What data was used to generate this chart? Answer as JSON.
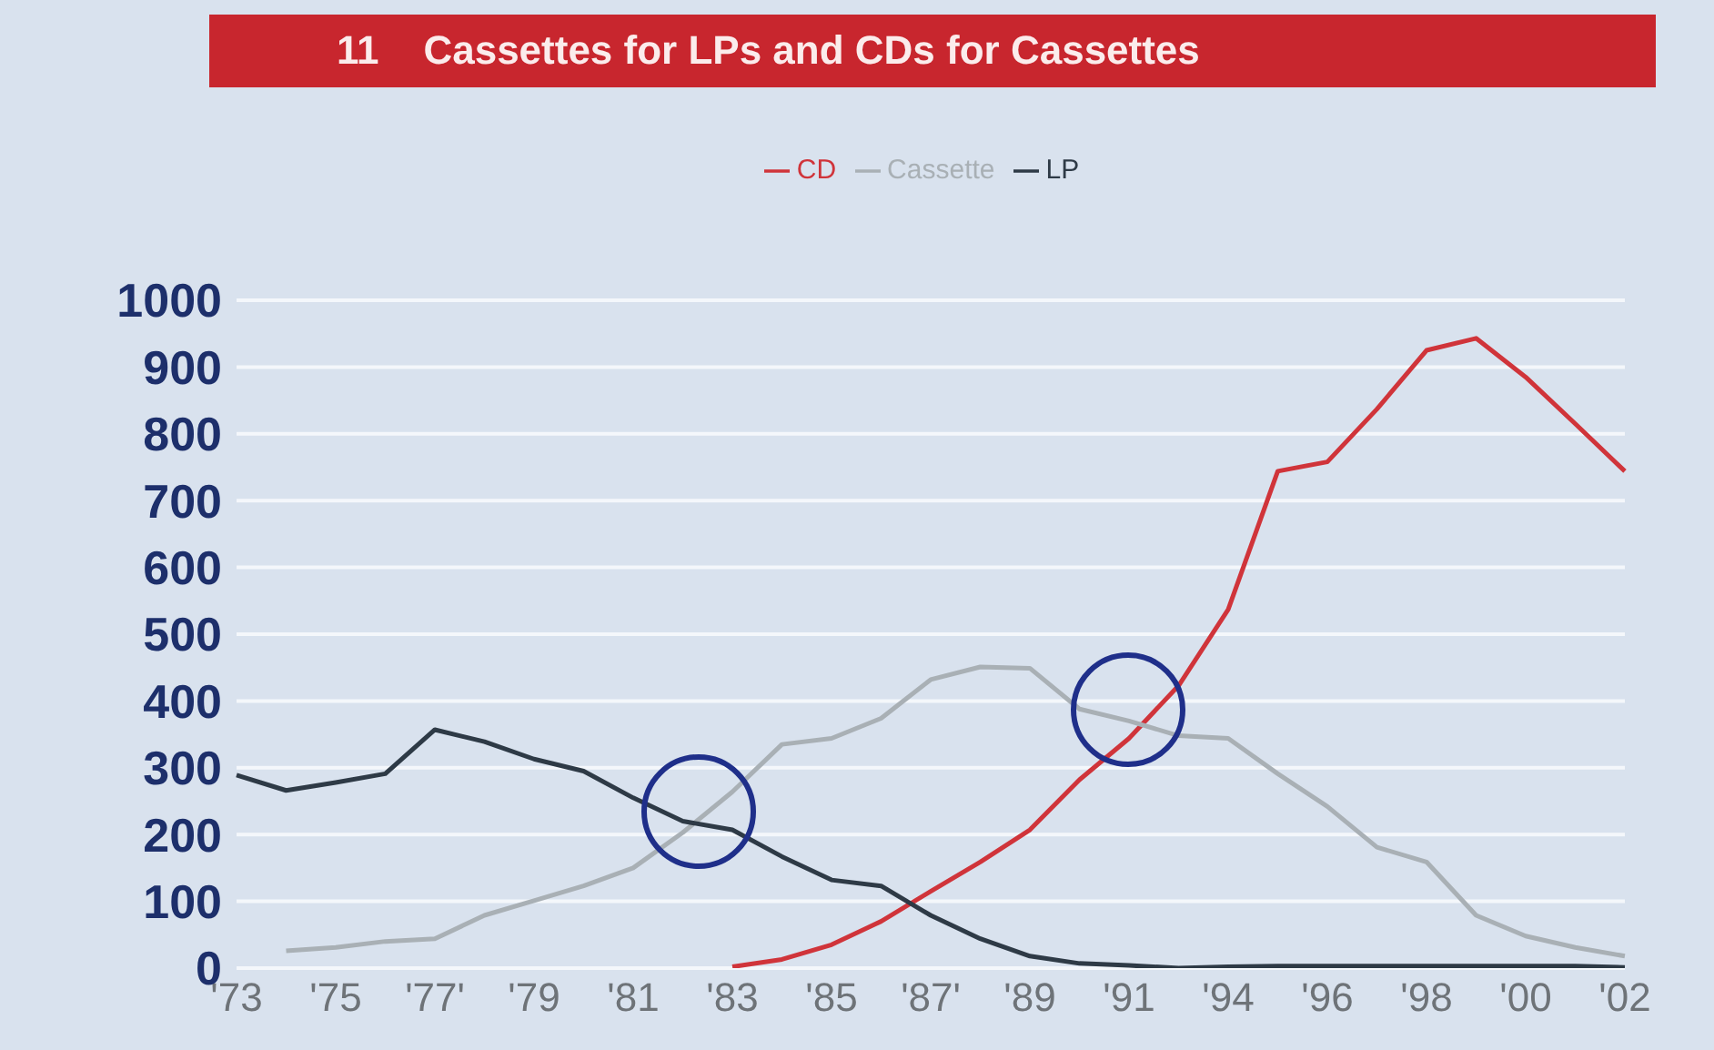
{
  "chart_data": {
    "type": "line",
    "title": "11    Cassettes for LPs and CDs for Cassettes",
    "categories": [
      "'73",
      null,
      "'75",
      null,
      "'77'",
      null,
      "'79",
      null,
      "'81",
      null,
      "'83",
      null,
      "'85",
      null,
      "'87'",
      null,
      "'89",
      null,
      "'91",
      null,
      "'94",
      null,
      "'96",
      null,
      "'98",
      null,
      "'00",
      null,
      "'02"
    ],
    "series": [
      {
        "name": "CD",
        "color": "#d0343a",
        "values": [
          null,
          null,
          null,
          null,
          null,
          null,
          null,
          null,
          null,
          null,
          2,
          13,
          35,
          70,
          115,
          159,
          207,
          282,
          344,
          423,
          537,
          744,
          758,
          837,
          925,
          943,
          885,
          815,
          744
        ]
      },
      {
        "name": "Cassette",
        "color": "#a9b0b5",
        "values": [
          null,
          26,
          31,
          40,
          44,
          79,
          101,
          123,
          150,
          203,
          264,
          335,
          344,
          374,
          432,
          451,
          449,
          388,
          370,
          348,
          344,
          291,
          242,
          181,
          159,
          79,
          48,
          31,
          18
        ]
      },
      {
        "name": "LP",
        "color": "#2e3a46",
        "values": [
          289,
          266,
          278,
          291,
          357,
          339,
          313,
          295,
          255,
          220,
          207,
          167,
          132,
          123,
          79,
          44,
          18,
          7,
          4,
          0,
          2,
          3,
          3,
          3,
          3,
          3,
          3,
          3,
          1
        ]
      }
    ],
    "ylim": [
      0,
      1000
    ],
    "yticks": [
      0,
      100,
      200,
      300,
      400,
      500,
      600,
      700,
      800,
      900,
      1000
    ],
    "grid": "y",
    "legend": "top",
    "marker": "none",
    "line_style": "solid"
  }
}
